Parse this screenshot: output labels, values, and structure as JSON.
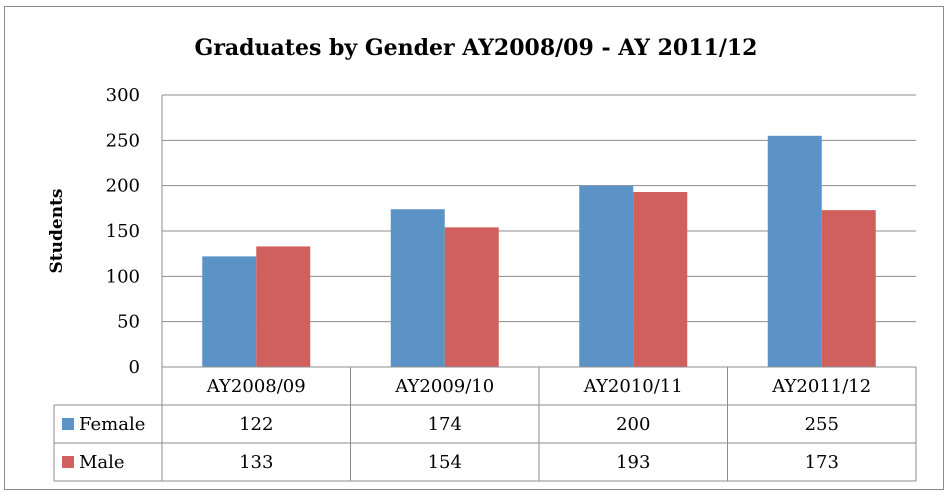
{
  "chart_data": {
    "type": "bar",
    "title": "Graduates by Gender AY2008/09 - AY 2011/12",
    "xlabel": "",
    "ylabel": "Students",
    "ylim": [
      0,
      300
    ],
    "y_ticks": [
      "0",
      "50",
      "100",
      "150",
      "200",
      "250",
      "300"
    ],
    "grid": true,
    "legend": "data-table",
    "categories": [
      "AY2008/09",
      "AY2009/10",
      "AY2010/11",
      "AY2011/12"
    ],
    "series": [
      {
        "name": "Female",
        "color": "#5b93c7",
        "values": [
          122,
          174,
          200,
          255
        ]
      },
      {
        "name": "Male",
        "color": "#d0605e",
        "values": [
          133,
          154,
          193,
          173
        ]
      }
    ]
  }
}
